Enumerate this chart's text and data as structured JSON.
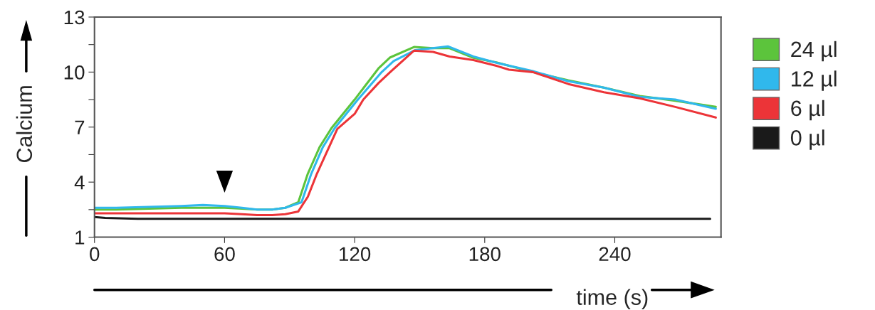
{
  "chart_data": {
    "type": "line",
    "xlabel": "time (s)",
    "ylabel": "Calcium",
    "xlim": [
      0,
      289
    ],
    "ylim": [
      1,
      13
    ],
    "xticks": [
      0,
      60,
      120,
      180,
      240
    ],
    "yticks": [
      1,
      {
        "value": 2.5,
        "label": null
      },
      4,
      {
        "value": 5.5,
        "label": null
      },
      7,
      {
        "value": 8.5,
        "label": null
      },
      10,
      {
        "value": 11.5,
        "label": null
      },
      13
    ],
    "grid": false,
    "legend": "right",
    "marker": "none",
    "line_style": "solid",
    "series": [
      {
        "name": "24 µl",
        "color": "#5cc43c",
        "x": [
          0,
          10,
          25,
          40,
          50,
          60,
          68,
          75,
          82,
          88,
          94,
          98.4,
          103.8,
          109.3,
          120,
          131,
          136.4,
          147.4,
          156.2,
          163.8,
          174.8,
          185.7,
          202.2,
          218.6,
          235,
          251.5,
          267.9,
          286.6
        ],
        "values": [
          2.5,
          2.5,
          2.55,
          2.6,
          2.6,
          2.6,
          2.55,
          2.5,
          2.5,
          2.6,
          2.9,
          4.46,
          5.9,
          6.94,
          8.5,
          10.2,
          10.8,
          11.37,
          11.3,
          11.3,
          10.78,
          10.52,
          10.0,
          9.55,
          9.15,
          8.7,
          8.44,
          8.1
        ]
      },
      {
        "name": "12 µl",
        "color": "#30b8ec",
        "x": [
          0,
          10,
          25,
          40,
          50,
          60,
          68,
          75,
          82,
          88,
          95.5,
          100,
          105.3,
          110.8,
          121.5,
          132.5,
          138,
          148,
          156,
          163,
          174.8,
          185.7,
          202.2,
          218.6,
          235,
          251.5,
          267.9,
          286.6
        ],
        "values": [
          2.6,
          2.6,
          2.65,
          2.7,
          2.75,
          2.7,
          2.6,
          2.5,
          2.5,
          2.6,
          2.9,
          4.46,
          5.9,
          6.94,
          8.5,
          10.0,
          10.6,
          11.2,
          11.3,
          11.4,
          10.85,
          10.5,
          10.05,
          9.5,
          9.15,
          8.65,
          8.5,
          8.0
        ]
      },
      {
        "name": "6 µl",
        "color": "#ec3438",
        "x": [
          0,
          10,
          25,
          40,
          50,
          60,
          68,
          75,
          82,
          88,
          94,
          98.4,
          102.6,
          112,
          120,
          124,
          131,
          136.4,
          147.4,
          156.2,
          163.8,
          174.8,
          185.7,
          191.2,
          202.2,
          218.6,
          235,
          251.5,
          267.9,
          286.6
        ],
        "values": [
          2.3,
          2.3,
          2.3,
          2.3,
          2.3,
          2.3,
          2.25,
          2.2,
          2.2,
          2.25,
          2.4,
          3.2,
          4.46,
          6.9,
          7.72,
          8.5,
          9.4,
          10.0,
          11.17,
          11.1,
          10.85,
          10.65,
          10.33,
          10.13,
          10.0,
          9.35,
          8.9,
          8.57,
          8.1,
          7.52
        ]
      },
      {
        "name": "0 µl",
        "color": "#1a1a1a",
        "x": [
          0,
          5,
          20,
          40,
          60,
          100,
          150,
          200,
          250,
          284
        ],
        "values": [
          2.1,
          2.05,
          2.0,
          2.0,
          2.0,
          2.0,
          2.0,
          2.0,
          2.0,
          2.0
        ]
      }
    ]
  }
}
